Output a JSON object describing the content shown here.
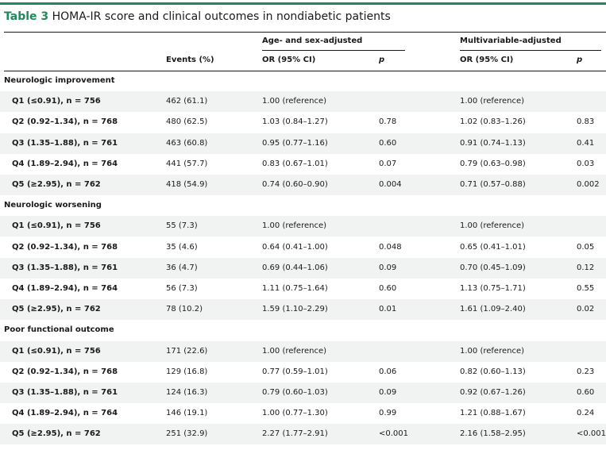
{
  "title": {
    "prefix": "Table 3",
    "text": "HOMA-IR score and clinical outcomes in nondiabetic patients"
  },
  "headers": {
    "group_age_sex": "Age- and sex-adjusted",
    "group_multi": "Multivariable-adjusted",
    "events": "Events (%)",
    "or_ci_1": "OR (95% CI)",
    "p_1": "p",
    "or_ci_2": "OR (95% CI)",
    "p_2": "p"
  },
  "sections": [
    {
      "title": "Neurologic improvement",
      "rows": [
        {
          "label": "Q1 (≤0.91), n = 756",
          "events": "462 (61.1)",
          "or1": "1.00 (reference)",
          "p1": "",
          "or2": "1.00 (reference)",
          "p2": ""
        },
        {
          "label": "Q2 (0.92–1.34), n = 768",
          "events": "480 (62.5)",
          "or1": "1.03 (0.84–1.27)",
          "p1": "0.78",
          "or2": "1.02 (0.83–1.26)",
          "p2": "0.83"
        },
        {
          "label": "Q3 (1.35–1.88), n = 761",
          "events": "463 (60.8)",
          "or1": "0.95 (0.77–1.16)",
          "p1": "0.60",
          "or2": "0.91 (0.74–1.13)",
          "p2": "0.41"
        },
        {
          "label": "Q4 (1.89–2.94), n = 764",
          "events": "441 (57.7)",
          "or1": "0.83 (0.67–1.01)",
          "p1": "0.07",
          "or2": "0.79 (0.63–0.98)",
          "p2": "0.03"
        },
        {
          "label": "Q5 (≥2.95), n = 762",
          "events": "418 (54.9)",
          "or1": "0.74 (0.60–0.90)",
          "p1": "0.004",
          "or2": "0.71 (0.57–0.88)",
          "p2": "0.002"
        }
      ]
    },
    {
      "title": "Neurologic worsening",
      "rows": [
        {
          "label": "Q1 (≤0.91), n = 756",
          "events": "55 (7.3)",
          "or1": "1.00 (reference)",
          "p1": "",
          "or2": "1.00 (reference)",
          "p2": ""
        },
        {
          "label": "Q2 (0.92–1.34), n = 768",
          "events": "35 (4.6)",
          "or1": "0.64 (0.41–1.00)",
          "p1": "0.048",
          "or2": "0.65 (0.41–1.01)",
          "p2": "0.05"
        },
        {
          "label": "Q3 (1.35–1.88), n = 761",
          "events": "36 (4.7)",
          "or1": "0.69 (0.44–1.06)",
          "p1": "0.09",
          "or2": "0.70 (0.45–1.09)",
          "p2": "0.12"
        },
        {
          "label": "Q4 (1.89–2.94), n = 764",
          "events": "56 (7.3)",
          "or1": "1.11 (0.75–1.64)",
          "p1": "0.60",
          "or2": "1.13 (0.75–1.71)",
          "p2": "0.55"
        },
        {
          "label": "Q5 (≥2.95), n = 762",
          "events": "78 (10.2)",
          "or1": "1.59 (1.10–2.29)",
          "p1": "0.01",
          "or2": "1.61 (1.09–2.40)",
          "p2": "0.02"
        }
      ]
    },
    {
      "title": "Poor functional outcome",
      "rows": [
        {
          "label": "Q1 (≤0.91), n = 756",
          "events": "171 (22.6)",
          "or1": "1.00 (reference)",
          "p1": "",
          "or2": "1.00 (reference)",
          "p2": ""
        },
        {
          "label": "Q2 (0.92–1.34), n = 768",
          "events": "129 (16.8)",
          "or1": "0.77 (0.59–1.01)",
          "p1": "0.06",
          "or2": "0.82 (0.60–1.13)",
          "p2": "0.23"
        },
        {
          "label": "Q3 (1.35–1.88), n = 761",
          "events": "124 (16.3)",
          "or1": "0.79 (0.60–1.03)",
          "p1": "0.09",
          "or2": "0.92 (0.67–1.26)",
          "p2": "0.60"
        },
        {
          "label": "Q4 (1.89–2.94), n = 764",
          "events": "146 (19.1)",
          "or1": "1.00 (0.77–1.30)",
          "p1": "0.99",
          "or2": "1.21 (0.88–1.67)",
          "p2": "0.24"
        },
        {
          "label": "Q5 (≥2.95), n = 762",
          "events": "251 (32.9)",
          "or1": "2.27 (1.77–2.91)",
          "p1": "<0.001",
          "or2": "2.16 (1.58–2.95)",
          "p2": "<0.001"
        }
      ]
    }
  ]
}
